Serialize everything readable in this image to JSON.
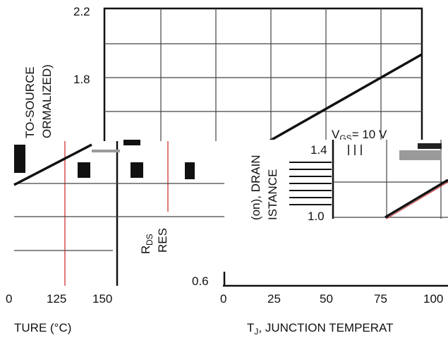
{
  "charts": {
    "left_fragment": {
      "x_ticks": [
        "0",
        "125",
        "150"
      ],
      "xlabel_fragment": "TURE (°C)",
      "ylabel_fragment_1": "TO-SOURCE",
      "ylabel_fragment_2": "ORMALIZED)"
    },
    "top_fragment": {
      "y_ticks": [
        "2.2",
        "1.8"
      ],
      "annotation": "V",
      "annotation_sub": "GS",
      "annotation_value": "= 10 V"
    },
    "right_fragment": {
      "y_ticks": [
        "1.4",
        "1.0",
        "0.6"
      ],
      "x_ticks": [
        "0",
        "25",
        "50",
        "75",
        "100"
      ],
      "xlabel_prefix": "T",
      "xlabel_sub": "J",
      "xlabel_rest": ", JUNCTION TEMPERAT",
      "ylabel_parts": [
        "R",
        "DS",
        "RES",
        "(on), DRAIN",
        "ISTANCE"
      ]
    }
  },
  "chart_data": [
    {
      "type": "line",
      "title": "",
      "xlabel": "T_J, JUNCTION TEMPERATURE (°C)",
      "ylabel": "R_DS(on), DRAIN-TO-SOURCE RESISTANCE (NORMALIZED)",
      "x": [
        0,
        25,
        50,
        75,
        100
      ],
      "ylim": [
        0.6,
        2.2
      ],
      "y_ticks": [
        0.6,
        1.0,
        1.4,
        1.8,
        2.2
      ],
      "series": [
        {
          "name": "V_GS = 10 V",
          "x": [
            75,
            100
          ],
          "y": [
            1.0,
            1.1
          ]
        },
        {
          "name": "V_GS = 10 V",
          "x": [
            85,
            150
          ],
          "y": [
            1.4,
            2.0
          ]
        }
      ]
    }
  ],
  "colors": {
    "ink": "#111111",
    "grid": "#444444",
    "accent_red": "#cc2222",
    "bar_gray": "#9a9a9a"
  }
}
